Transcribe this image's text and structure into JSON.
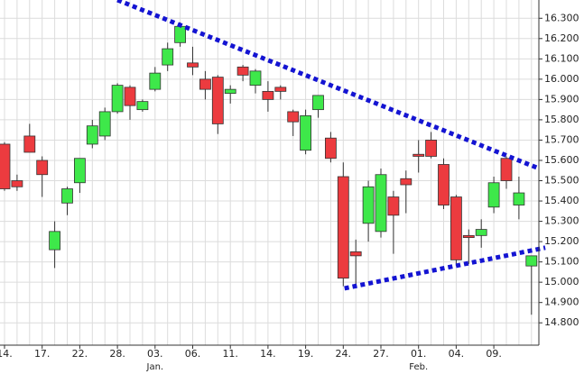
{
  "chart_data": {
    "type": "candlestick",
    "categories": [
      "14.",
      null,
      null,
      "17.",
      null,
      null,
      "22.",
      null,
      null,
      "28.",
      null,
      null,
      "03.",
      null,
      null,
      "06.",
      null,
      null,
      "11.",
      null,
      null,
      "14.",
      null,
      null,
      "19.",
      null,
      null,
      "24.",
      null,
      null,
      "27.",
      null,
      null,
      "01.",
      null,
      null,
      "04.",
      null,
      null,
      "09.",
      null,
      null,
      null
    ],
    "category_sublabels": [
      null,
      null,
      null,
      null,
      null,
      null,
      null,
      null,
      null,
      null,
      null,
      null,
      "Jan.",
      null,
      null,
      null,
      null,
      null,
      null,
      null,
      null,
      null,
      null,
      null,
      null,
      null,
      null,
      null,
      null,
      null,
      null,
      null,
      null,
      "Feb.",
      null,
      null,
      null,
      null,
      null,
      null,
      null,
      null,
      null
    ],
    "open": [
      15.68,
      15.5,
      15.72,
      15.6,
      15.16,
      15.39,
      15.49,
      15.68,
      15.72,
      15.84,
      15.96,
      15.85,
      15.95,
      16.07,
      16.18,
      16.08,
      16.0,
      16.01,
      15.93,
      16.06,
      15.97,
      15.94,
      15.96,
      15.84,
      15.65,
      15.85,
      15.71,
      15.52,
      15.15,
      15.29,
      15.25,
      15.42,
      15.51,
      15.63,
      15.7,
      15.58,
      15.42,
      15.23,
      15.23,
      15.37,
      15.61,
      15.38,
      15.08
    ],
    "high": [
      15.69,
      15.53,
      15.78,
      15.62,
      15.3,
      15.47,
      15.61,
      15.8,
      15.86,
      15.98,
      15.97,
      15.9,
      16.06,
      16.18,
      16.28,
      16.16,
      16.04,
      16.02,
      15.97,
      16.07,
      16.05,
      15.99,
      15.97,
      15.85,
      15.85,
      15.92,
      15.74,
      15.59,
      15.21,
      15.5,
      15.56,
      15.45,
      15.55,
      15.7,
      15.74,
      15.61,
      15.43,
      15.26,
      15.31,
      15.52,
      15.62,
      15.52,
      15.13
    ],
    "low": [
      15.45,
      15.45,
      15.64,
      15.42,
      15.07,
      15.33,
      15.44,
      15.66,
      15.7,
      15.83,
      15.8,
      15.84,
      15.94,
      16.04,
      16.16,
      16.02,
      15.9,
      15.73,
      15.88,
      15.99,
      15.93,
      15.84,
      15.9,
      15.72,
      15.63,
      15.81,
      15.59,
      14.98,
      14.99,
      15.2,
      15.22,
      15.14,
      15.34,
      15.54,
      15.61,
      15.36,
      15.08,
      15.09,
      15.17,
      15.34,
      15.46,
      15.31,
      14.84
    ],
    "close": [
      15.46,
      15.47,
      15.64,
      15.53,
      15.25,
      15.46,
      15.61,
      15.77,
      15.84,
      15.97,
      15.87,
      15.89,
      16.03,
      16.15,
      16.26,
      16.06,
      15.95,
      15.78,
      15.95,
      16.02,
      16.04,
      15.9,
      15.94,
      15.79,
      15.82,
      15.92,
      15.61,
      15.02,
      15.13,
      15.47,
      15.53,
      15.33,
      15.48,
      15.62,
      15.62,
      15.38,
      15.11,
      15.22,
      15.26,
      15.49,
      15.5,
      15.44,
      15.13
    ],
    "up_color": "#3ee84a",
    "down_color": "#ec3b3f",
    "ylim": [
      14.69,
      16.39
    ],
    "yticks": [
      {
        "value": 14.8,
        "label": "14.800"
      },
      {
        "value": 14.9,
        "label": "14.900"
      },
      {
        "value": 15.0,
        "label": "15.000"
      },
      {
        "value": 15.1,
        "label": "15.100"
      },
      {
        "value": 15.2,
        "label": "15.200"
      },
      {
        "value": 15.3,
        "label": "15.300"
      },
      {
        "value": 15.4,
        "label": "15.400"
      },
      {
        "value": 15.5,
        "label": "15.500"
      },
      {
        "value": 15.6,
        "label": "15.600"
      },
      {
        "value": 15.7,
        "label": "15.700"
      },
      {
        "value": 15.8,
        "label": "15.800"
      },
      {
        "value": 15.9,
        "label": "15.900"
      },
      {
        "value": 16.0,
        "label": "16.000"
      },
      {
        "value": 16.1,
        "label": "16.100"
      },
      {
        "value": 16.2,
        "label": "16.200"
      },
      {
        "value": 16.3,
        "label": "16.300"
      }
    ],
    "grid": true,
    "trendlines": [
      {
        "x": [
          9,
          42.6
        ],
        "y": [
          16.39,
          15.56
        ],
        "color": "#1414d2"
      },
      {
        "x": [
          27.1,
          43.1
        ],
        "y": [
          14.97,
          15.17
        ],
        "color": "#1414d2"
      }
    ]
  }
}
